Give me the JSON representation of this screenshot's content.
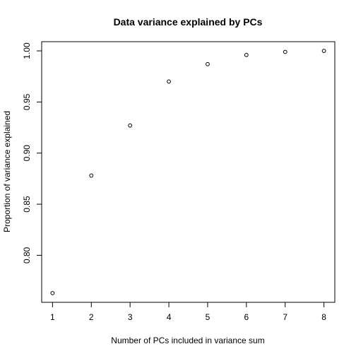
{
  "chart_data": {
    "type": "scatter",
    "title": "Data variance explained by PCs",
    "xlabel": "Number of PCs included in variance sum",
    "ylabel": "Proportion of variance explained",
    "x": [
      1,
      2,
      3,
      4,
      5,
      6,
      7,
      8
    ],
    "y": [
      0.763,
      0.878,
      0.927,
      0.97,
      0.987,
      0.996,
      0.999,
      1.0
    ],
    "xlim": [
      0.72,
      8.28
    ],
    "ylim": [
      0.754,
      1.009
    ],
    "xticks": [
      1,
      2,
      3,
      4,
      5,
      6,
      7,
      8
    ],
    "xtick_labels": [
      "1",
      "2",
      "3",
      "4",
      "5",
      "6",
      "7",
      "8"
    ],
    "yticks": [
      0.8,
      0.85,
      0.9,
      0.95,
      1.0
    ],
    "ytick_labels": [
      "0.80",
      "0.85",
      "0.90",
      "0.95",
      "1.00"
    ],
    "grid": false,
    "marker": "open-circle",
    "color": "#000000"
  }
}
